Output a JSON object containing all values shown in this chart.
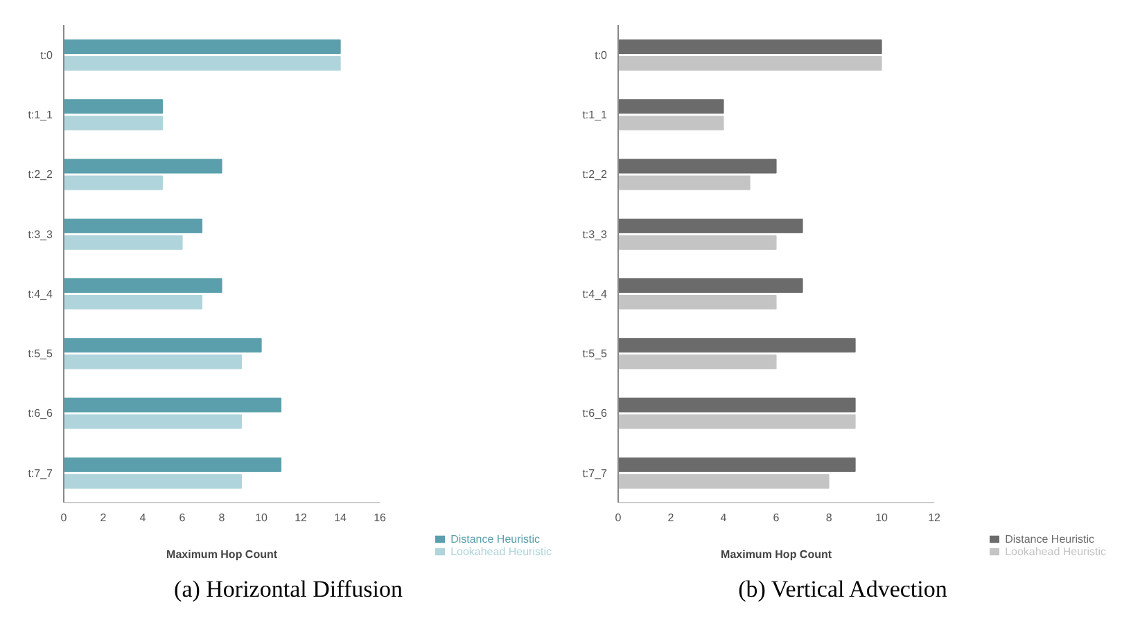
{
  "chart_data": [
    {
      "type": "bar",
      "orientation": "horizontal",
      "title": "(a) Horizontal Diffusion",
      "xlabel": "Maximum Hop Count",
      "categories": [
        "t:0",
        "t:1_1",
        "t:2_2",
        "t:3_3",
        "t:4_4",
        "t:5_5",
        "t:6_6",
        "t:7_7"
      ],
      "xlim": [
        0,
        16
      ],
      "xticks": [
        0,
        2,
        4,
        6,
        8,
        10,
        12,
        14,
        16
      ],
      "grid": false,
      "legend": "bottom right",
      "series": [
        {
          "name": "Distance Heuristic",
          "color": "#5a9fab",
          "values": [
            14,
            5,
            8,
            7,
            8,
            10,
            11,
            11
          ]
        },
        {
          "name": "Lookahead Heuristic",
          "color": "#b0d4db",
          "values": [
            14,
            5,
            5,
            6,
            7,
            9,
            9,
            9
          ]
        }
      ]
    },
    {
      "type": "bar",
      "orientation": "horizontal",
      "title": "(b) Vertical Advection",
      "xlabel": "Maximum Hop Count",
      "categories": [
        "t:0",
        "t:1_1",
        "t:2_2",
        "t:3_3",
        "t:4_4",
        "t:5_5",
        "t:6_6",
        "t:7_7"
      ],
      "xlim": [
        0,
        12
      ],
      "xticks": [
        0,
        2,
        4,
        6,
        8,
        10,
        12
      ],
      "grid": false,
      "legend": "bottom right",
      "series": [
        {
          "name": "Distance Heuristic",
          "color": "#6b6b6b",
          "values": [
            10,
            4,
            6,
            7,
            7,
            9,
            9,
            9
          ]
        },
        {
          "name": "Lookahead Heuristic",
          "color": "#c4c4c4",
          "values": [
            10,
            4,
            5,
            6,
            6,
            6,
            9,
            8
          ]
        }
      ]
    }
  ]
}
